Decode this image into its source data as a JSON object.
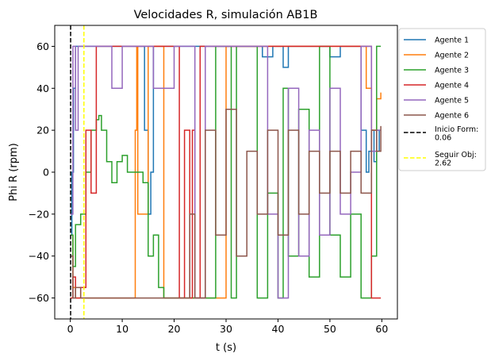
{
  "chart_data": {
    "type": "line",
    "title": "Velocidades R, simulación AB1B",
    "xlabel": "t (s)",
    "ylabel": "Phi R (rpm)",
    "xlim": [
      -3,
      63
    ],
    "ylim": [
      -70,
      70
    ],
    "xticks": [
      0,
      10,
      20,
      30,
      40,
      50,
      60
    ],
    "yticks": [
      -60,
      -40,
      -20,
      0,
      20,
      40,
      60
    ],
    "ytick_labels": [
      "−60",
      "−40",
      "−20",
      "0",
      "20",
      "40",
      "60"
    ],
    "grid": false,
    "legend_position": "outside-right",
    "series": [
      {
        "name": "Agente 1",
        "color": "#1f77b4",
        "x": [
          0,
          0.3,
          0.6,
          1,
          14,
          14.3,
          15,
          15.5,
          16,
          20,
          36.5,
          37,
          39,
          41,
          42,
          44,
          50,
          52,
          55,
          56,
          57,
          57.5,
          58,
          58.5,
          59,
          59.5
        ],
        "y": [
          -30,
          0,
          40,
          60,
          60,
          20,
          -20,
          0,
          60,
          60,
          60,
          55,
          60,
          50,
          60,
          60,
          55,
          60,
          60,
          20,
          0,
          10,
          20,
          5,
          20,
          10
        ]
      },
      {
        "name": "Agente 2",
        "color": "#ff7f0e",
        "x": [
          0,
          0.5,
          1,
          12,
          12.5,
          12.8,
          13,
          15,
          16,
          18,
          19,
          21,
          22,
          24,
          26,
          30,
          32,
          34,
          36,
          38,
          40,
          44,
          46,
          48,
          50,
          52,
          54,
          55,
          56,
          57,
          58,
          59,
          59.8
        ],
        "y": [
          -30,
          -55,
          -60,
          -60,
          20,
          60,
          -20,
          60,
          60,
          -60,
          -60,
          -60,
          -60,
          -60,
          -60,
          60,
          60,
          60,
          60,
          60,
          60,
          60,
          60,
          60,
          60,
          60,
          60,
          60,
          60,
          40,
          20,
          35,
          38
        ]
      },
      {
        "name": "Agente 3",
        "color": "#2ca02c",
        "x": [
          0,
          0.5,
          1,
          2,
          3,
          4,
          5,
          5.5,
          6,
          7,
          8,
          9,
          10,
          11,
          12,
          13,
          14,
          15,
          16,
          17,
          18,
          19,
          20,
          22,
          24,
          26,
          28,
          30,
          31,
          32,
          34,
          36,
          38,
          40,
          41,
          42,
          44,
          46,
          48,
          50,
          52,
          54,
          56,
          58,
          59,
          59.8
        ],
        "y": [
          -30,
          -45,
          -25,
          -20,
          0,
          20,
          25,
          27,
          20,
          5,
          -5,
          5,
          8,
          0,
          0,
          0,
          -5,
          -40,
          -30,
          -55,
          -60,
          -60,
          -60,
          -60,
          -60,
          -60,
          60,
          60,
          -60,
          60,
          60,
          -60,
          -10,
          -60,
          40,
          -40,
          30,
          -50,
          60,
          -30,
          -50,
          -20,
          -60,
          -40,
          60,
          60
        ]
      },
      {
        "name": "Agente 4",
        "color": "#d62728",
        "x": [
          0,
          0.5,
          1,
          2,
          3,
          4,
          5,
          6,
          8,
          10,
          12,
          14,
          16,
          18,
          20,
          21,
          22,
          23,
          23.5,
          24,
          25,
          26,
          28,
          30,
          32,
          34,
          36,
          38,
          40,
          42,
          44,
          46,
          48,
          50,
          52,
          54,
          56,
          58,
          59,
          59.8
        ],
        "y": [
          -60,
          -50,
          -60,
          -55,
          20,
          -10,
          60,
          60,
          60,
          60,
          60,
          60,
          60,
          60,
          60,
          -60,
          20,
          -60,
          20,
          -60,
          60,
          60,
          60,
          60,
          60,
          60,
          60,
          60,
          60,
          60,
          60,
          60,
          60,
          60,
          60,
          60,
          60,
          -60,
          -60,
          -60
        ]
      },
      {
        "name": "Agente 5",
        "color": "#9467bd",
        "x": [
          0,
          0.5,
          1,
          1.5,
          2,
          3,
          4,
          6,
          8,
          10,
          12,
          14,
          16,
          18,
          20,
          22,
          24,
          26,
          28,
          30,
          32,
          34,
          36,
          38,
          40,
          42,
          44,
          46,
          48,
          50,
          52,
          54,
          56,
          58,
          59,
          59.8
        ],
        "y": [
          -20,
          60,
          20,
          60,
          60,
          60,
          60,
          60,
          40,
          60,
          60,
          60,
          40,
          40,
          60,
          60,
          -60,
          60,
          60,
          60,
          60,
          60,
          60,
          -20,
          -60,
          40,
          -40,
          20,
          -30,
          40,
          -20,
          0,
          60,
          10,
          20,
          20
        ]
      },
      {
        "name": "Agente 6",
        "color": "#8c564b",
        "x": [
          0,
          0.5,
          1,
          2,
          4,
          6,
          8,
          10,
          12,
          14,
          16,
          18,
          20,
          22,
          23,
          24,
          26,
          28,
          30,
          32,
          34,
          36,
          38,
          40,
          42,
          44,
          46,
          48,
          50,
          52,
          54,
          56,
          58,
          59,
          59.8
        ],
        "y": [
          -40,
          -60,
          -55,
          -60,
          -60,
          -60,
          -60,
          -60,
          -60,
          -60,
          -60,
          -60,
          -60,
          -60,
          -20,
          -60,
          20,
          -30,
          30,
          -40,
          10,
          -20,
          20,
          -30,
          20,
          -20,
          10,
          -10,
          10,
          -10,
          10,
          -10,
          20,
          10,
          22
        ]
      }
    ],
    "markers": [
      {
        "name": "Inicio Form:\n0.06",
        "label_lines": [
          "Inicio Form:",
          "0.06"
        ],
        "x": 0.06,
        "color": "#000000",
        "style": "dashed"
      },
      {
        "name": "Seguir Obj:\n2.62",
        "label_lines": [
          "Seguir Obj:",
          "2.62"
        ],
        "x": 2.62,
        "color": "#ffff00",
        "style": "dashed"
      }
    ]
  }
}
